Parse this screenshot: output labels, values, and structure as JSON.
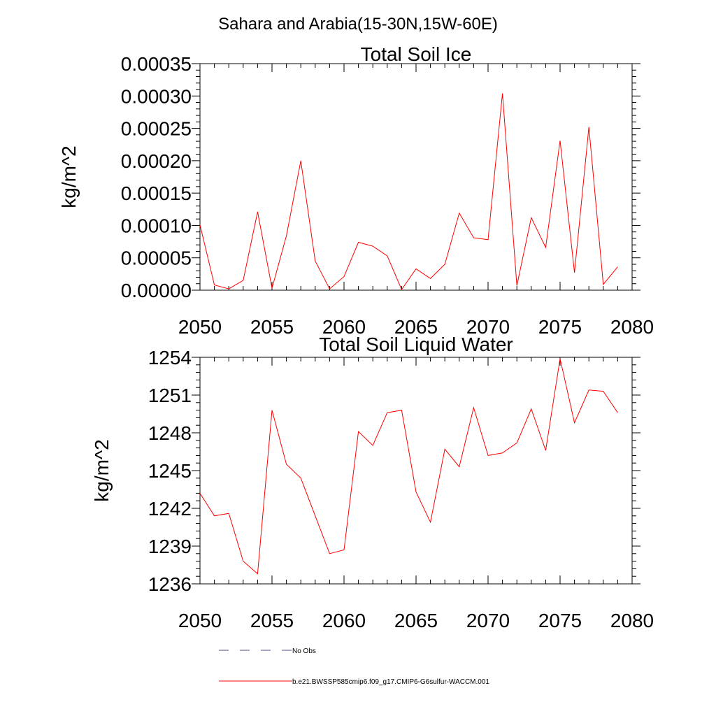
{
  "title": "Sahara and Arabia(15-30N,15W-60E)",
  "legend": [
    {
      "label": "No Obs",
      "style": "dashed",
      "color": "#4a4a8a"
    },
    {
      "label": "b.e21.BWSSP585cmip6.f09_g17.CMIP6-G6sulfur-WACCM.001",
      "style": "solid",
      "color": "#ff0000"
    }
  ],
  "chart_data": [
    {
      "type": "line",
      "title": "Total Soil Ice",
      "ylabel": "kg/m^2",
      "xlabel": "",
      "xlim": [
        2050,
        2080
      ],
      "ylim": [
        0,
        0.00035
      ],
      "xticks": [
        2050,
        2055,
        2060,
        2065,
        2070,
        2075,
        2080
      ],
      "xtick_labels": [
        "2050",
        "2055",
        "2060",
        "2065",
        "2070",
        "2075",
        "2080"
      ],
      "yticks": [
        0,
        5e-05,
        0.0001,
        0.00015,
        0.0002,
        0.00025,
        0.0003,
        0.00035
      ],
      "ytick_labels": [
        "0.00000",
        "0.00005",
        "0.00010",
        "0.00015",
        "0.00020",
        "0.00025",
        "0.00030",
        "0.00035"
      ],
      "grid": false,
      "series": [
        {
          "name": "b.e21.BWSSP585cmip6.f09_g17.CMIP6-G6sulfur-WACCM.001",
          "color": "#ff0000",
          "x": [
            2050,
            2051,
            2052,
            2053,
            2054,
            2055,
            2056,
            2057,
            2058,
            2059,
            2060,
            2061,
            2062,
            2063,
            2064,
            2065,
            2066,
            2067,
            2068,
            2069,
            2070,
            2071,
            2072,
            2073,
            2074,
            2075,
            2076,
            2077,
            2078,
            2079
          ],
          "y": [
            0.000101,
            8e-06,
            2e-06,
            1.5e-05,
            0.000121,
            3e-06,
            8.4e-05,
            0.0002,
            4.5e-05,
            2e-06,
            2.1e-05,
            7.4e-05,
            6.8e-05,
            5.3e-05,
            1e-06,
            3.3e-05,
            1.8e-05,
            4e-05,
            0.000119,
            8.1e-05,
            7.8e-05,
            0.000304,
            7e-06,
            0.000112,
            6.6e-05,
            0.000231,
            2.7e-05,
            0.000252,
            9e-06,
            3.6e-05
          ]
        }
      ]
    },
    {
      "type": "line",
      "title": "Total Soil Liquid Water",
      "ylabel": "kg/m^2",
      "xlabel": "",
      "xlim": [
        2050,
        2080
      ],
      "ylim": [
        1236,
        1254
      ],
      "xticks": [
        2050,
        2055,
        2060,
        2065,
        2070,
        2075,
        2080
      ],
      "xtick_labels": [
        "2050",
        "2055",
        "2060",
        "2065",
        "2070",
        "2075",
        "2080"
      ],
      "yticks": [
        1236,
        1239,
        1242,
        1245,
        1248,
        1251,
        1254
      ],
      "ytick_labels": [
        "1236",
        "1239",
        "1242",
        "1245",
        "1248",
        "1251",
        "1254"
      ],
      "grid": false,
      "series": [
        {
          "name": "b.e21.BWSSP585cmip6.f09_g17.CMIP6-G6sulfur-WACCM.001",
          "color": "#ff0000",
          "x": [
            2050,
            2051,
            2052,
            2053,
            2054,
            2055,
            2056,
            2057,
            2058,
            2059,
            2060,
            2061,
            2062,
            2063,
            2064,
            2065,
            2066,
            2067,
            2068,
            2069,
            2070,
            2071,
            2072,
            2073,
            2074,
            2075,
            2076,
            2077,
            2078,
            2079
          ],
          "y": [
            1243.2,
            1241.4,
            1241.6,
            1237.8,
            1236.8,
            1249.8,
            1245.5,
            1244.4,
            1241.4,
            1238.4,
            1238.7,
            1248.1,
            1247.0,
            1249.6,
            1249.8,
            1243.3,
            1240.9,
            1246.7,
            1245.3,
            1250.0,
            1246.2,
            1246.4,
            1247.2,
            1249.9,
            1246.6,
            1253.9,
            1248.8,
            1251.4,
            1251.3,
            1249.6
          ]
        }
      ]
    }
  ]
}
